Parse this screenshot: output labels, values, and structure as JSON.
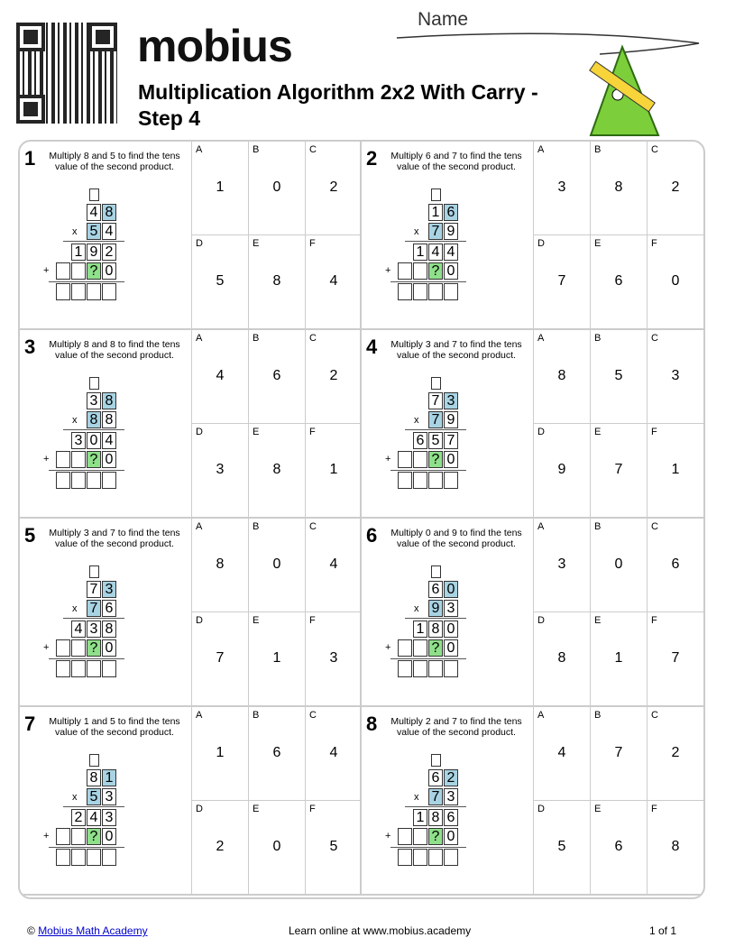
{
  "header": {
    "logo": "mobius",
    "title": "Multiplication Algorithm 2x2 With Carry - Step 4",
    "name_label": "Name"
  },
  "problems": [
    {
      "n": "1",
      "text": "Multiply 8 and 5 to find the tens value of the second product.",
      "top": [
        "4",
        "8"
      ],
      "bottom": [
        "5",
        "4"
      ],
      "partial": [
        "1",
        "9",
        "2"
      ],
      "second": [
        "?",
        "0"
      ],
      "choices": {
        "A": "1",
        "B": "0",
        "C": "2",
        "D": "5",
        "E": "8",
        "F": "4"
      }
    },
    {
      "n": "2",
      "text": "Multiply 6 and 7 to find the tens value of the second product.",
      "top": [
        "1",
        "6"
      ],
      "bottom": [
        "7",
        "9"
      ],
      "partial": [
        "1",
        "4",
        "4"
      ],
      "second": [
        "?",
        "0"
      ],
      "choices": {
        "A": "3",
        "B": "8",
        "C": "2",
        "D": "7",
        "E": "6",
        "F": "0"
      }
    },
    {
      "n": "3",
      "text": "Multiply 8 and 8 to find the tens value of the second product.",
      "top": [
        "3",
        "8"
      ],
      "bottom": [
        "8",
        "8"
      ],
      "partial": [
        "3",
        "0",
        "4"
      ],
      "second": [
        "?",
        "0"
      ],
      "choices": {
        "A": "4",
        "B": "6",
        "C": "2",
        "D": "3",
        "E": "8",
        "F": "1"
      }
    },
    {
      "n": "4",
      "text": "Multiply 3 and 7 to find the tens value of the second product.",
      "top": [
        "7",
        "3"
      ],
      "bottom": [
        "7",
        "9"
      ],
      "partial": [
        "6",
        "5",
        "7"
      ],
      "second": [
        "?",
        "0"
      ],
      "choices": {
        "A": "8",
        "B": "5",
        "C": "3",
        "D": "9",
        "E": "7",
        "F": "1"
      }
    },
    {
      "n": "5",
      "text": "Multiply 3 and 7 to find the tens value of the second product.",
      "top": [
        "7",
        "3"
      ],
      "bottom": [
        "7",
        "6"
      ],
      "partial": [
        "4",
        "3",
        "8"
      ],
      "second": [
        "?",
        "0"
      ],
      "choices": {
        "A": "8",
        "B": "0",
        "C": "4",
        "D": "7",
        "E": "1",
        "F": "3"
      }
    },
    {
      "n": "6",
      "text": "Multiply 0 and 9 to find the tens value of the second product.",
      "top": [
        "6",
        "0"
      ],
      "bottom": [
        "9",
        "3"
      ],
      "partial": [
        "1",
        "8",
        "0"
      ],
      "second": [
        "?",
        "0"
      ],
      "choices": {
        "A": "3",
        "B": "0",
        "C": "6",
        "D": "8",
        "E": "1",
        "F": "7"
      }
    },
    {
      "n": "7",
      "text": "Multiply 1 and 5 to find the tens value of the second product.",
      "top": [
        "8",
        "1"
      ],
      "bottom": [
        "5",
        "3"
      ],
      "partial": [
        "2",
        "4",
        "3"
      ],
      "second": [
        "?",
        "0"
      ],
      "choices": {
        "A": "1",
        "B": "6",
        "C": "4",
        "D": "2",
        "E": "0",
        "F": "5"
      }
    },
    {
      "n": "8",
      "text": "Multiply 2 and 7 to find the tens value of the second product.",
      "top": [
        "6",
        "2"
      ],
      "bottom": [
        "7",
        "3"
      ],
      "partial": [
        "1",
        "8",
        "6"
      ],
      "second": [
        "?",
        "0"
      ],
      "choices": {
        "A": "4",
        "B": "7",
        "C": "2",
        "D": "5",
        "E": "6",
        "F": "8"
      }
    }
  ],
  "symbols": {
    "times": "x",
    "plus": "+"
  },
  "footer": {
    "copyright": "©",
    "link": "Mobius Math Academy",
    "center": "Learn online at www.mobius.academy",
    "page": "1 of 1"
  },
  "colors": {
    "highlight": "#a8d3e3",
    "question": "#8fe08a"
  }
}
